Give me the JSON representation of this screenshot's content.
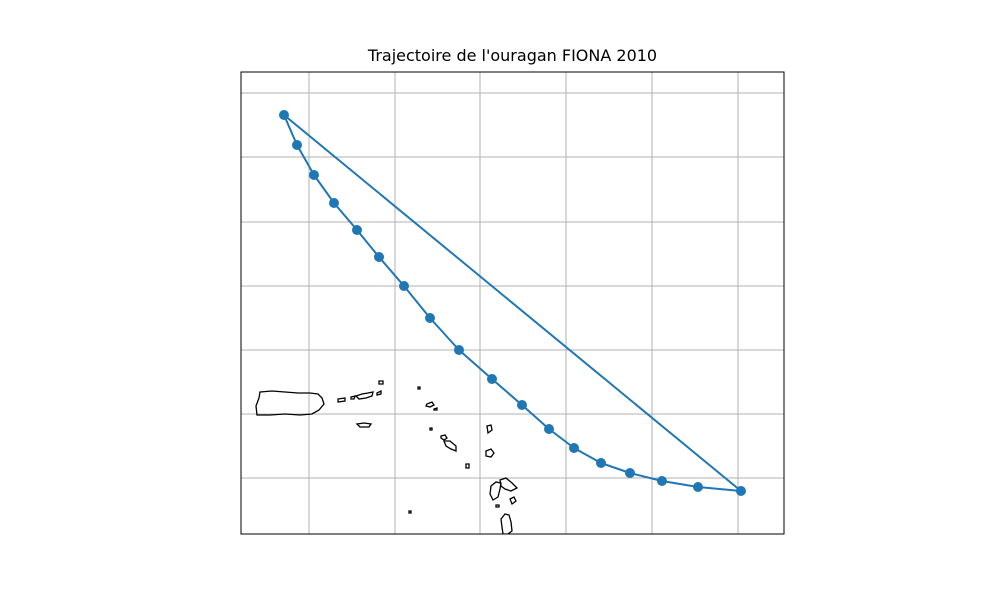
{
  "title": "Trajectoire de l'ouragan FIONA 2010",
  "colors": {
    "track": "#1f77b4",
    "grid": "#b0b0b0",
    "coast": "#000000",
    "frame": "#000000"
  },
  "map": {
    "gridlines": true,
    "coastlines": true
  }
}
